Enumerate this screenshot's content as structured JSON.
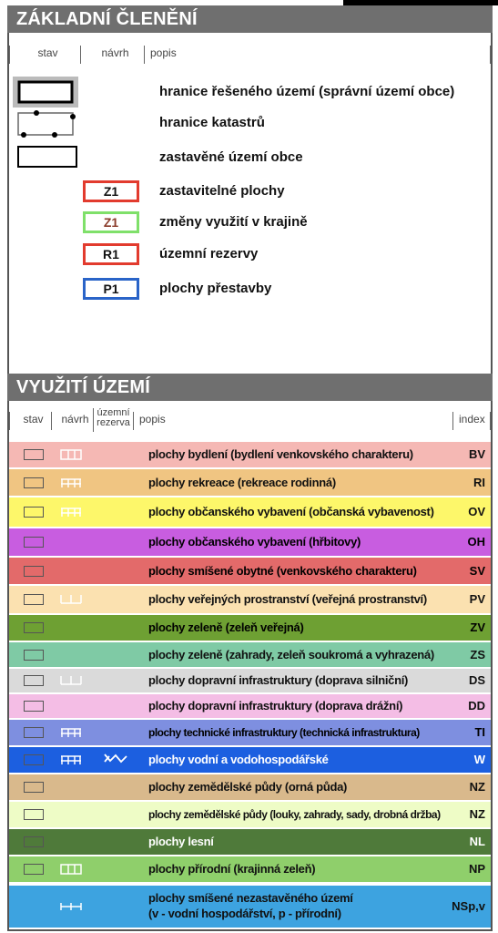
{
  "section1": {
    "title": "ZÁKLADNÍ ČLENĚNÍ",
    "col_stav": "stav",
    "col_navrh": "návrh",
    "col_popis": "popis",
    "rows": [
      {
        "label": "hranice řešeného území (správní území obce)"
      },
      {
        "label": "hranice katastrů"
      },
      {
        "label": "zastavěné území obce"
      },
      {
        "code": "Z1",
        "color": "#e23b2e",
        "textColor": "#111111",
        "label": "zastavitelné plochy"
      },
      {
        "code": "Z1",
        "color": "#7fe06a",
        "textColor": "#8a3b2a",
        "label": "změny využití v krajině"
      },
      {
        "code": "R1",
        "color": "#e23b2e",
        "textColor": "#111111",
        "label": "územní rezervy"
      },
      {
        "code": "P1",
        "color": "#2a64c8",
        "textColor": "#111111",
        "label": "plochy přestavby"
      }
    ]
  },
  "section2": {
    "title": "VYUŽITÍ ÚZEMÍ",
    "col_stav": "stav",
    "col_navrh": "návrh",
    "col_rezerva_1": "územní",
    "col_rezerva_2": "rezerva",
    "col_popis": "popis",
    "col_index": "index",
    "rows": [
      {
        "label": "plochy bydlení (bydlení venkovského charakteru)",
        "index": "BV",
        "color": "#f5b8b4",
        "navrh": true,
        "navrh_icon": "box-icon"
      },
      {
        "label": "plochy rekreace (rekreace rodinná)",
        "index": "RI",
        "color": "#f0c582",
        "navrh": true,
        "navrh_icon": "hatch-icon"
      },
      {
        "label": "plochy občanského vybavení (občanská vybavenost)",
        "index": "OV",
        "color": "#fdf76a",
        "navrh": true,
        "navrh_icon": "hatch-icon"
      },
      {
        "label": "plochy občanského vybavení (hřbitovy)",
        "index": "OH",
        "color": "#c85de0",
        "navrh": false
      },
      {
        "label": "plochy smíšené obytné (venkovského charakteru)",
        "index": "SV",
        "color": "#e36a6a",
        "navrh": false
      },
      {
        "label": "plochy veřejných prostranství (veřejná prostranství)",
        "index": "PV",
        "color": "#fbe1b0",
        "navrh": true,
        "navrh_icon": "bracket-icon"
      },
      {
        "label": "plochy zeleně (zeleň veřejná)",
        "index": "ZV",
        "color": "#6ea033",
        "navrh": false
      },
      {
        "label": "plochy zeleně (zahrady, zeleň soukromá a vyhrazená)",
        "index": "ZS",
        "color": "#7fcaa5",
        "navrh": false
      },
      {
        "label": "plochy dopravní infrastruktury (doprava silniční)",
        "index": "DS",
        "color": "#dadada",
        "navrh": true,
        "navrh_icon": "bracket-icon"
      },
      {
        "label": "plochy dopravní infrastruktury (doprava drážní)",
        "index": "DD",
        "color": "#f4bde5",
        "navrh": false
      },
      {
        "label": "plochy technické infrastruktury (technická infrastruktura)",
        "index": "TI",
        "color": "#7e8fe0",
        "navrh": true,
        "navrh_icon": "hatch-icon"
      },
      {
        "label": "plochy vodní a vodohospodářské",
        "index": "W",
        "color": "#1c5fe0",
        "navrh": true,
        "navrh_icon": "hatch-icon",
        "rezerva": true
      },
      {
        "label": "plochy zemědělské půdy (orná půda)",
        "index": "NZ",
        "color": "#d9b98c",
        "navrh": false
      },
      {
        "label": "plochy zemědělské půdy (louky, zahrady, sady, drobná držba)",
        "index": "NZ",
        "color": "#eefcc6",
        "navrh": false
      },
      {
        "label": "plochy lesní",
        "index": "NL",
        "color": "#4f7a3a",
        "navrh": false
      },
      {
        "label": "plochy přírodní (krajinná zeleň)",
        "index": "NP",
        "color": "#8fcf6b",
        "navrh": true,
        "navrh_icon": "box-icon"
      }
    ],
    "last_row": {
      "line1": "plochy smíšené nezastavěného území",
      "line2": "(v - vodní hospodářství, p - přírodní)",
      "index": "NSp,v",
      "color": "#3da3e0"
    }
  }
}
